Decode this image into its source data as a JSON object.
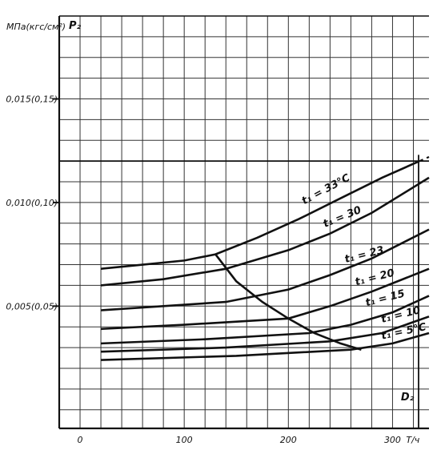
{
  "chart_data": {
    "type": "line",
    "title": "",
    "ylabel_unit": "МПа(кгс/см²)",
    "ylabel": "P₂",
    "xlabel": "D₂",
    "xunit": "Т/ч",
    "xlim": [
      -20,
      335
    ],
    "ylim": [
      -0.0009,
      0.019
    ],
    "grid": true,
    "x_ticks": [
      {
        "value": 0,
        "label": "0"
      },
      {
        "value": 100,
        "label": "100"
      },
      {
        "value": 200,
        "label": "200"
      },
      {
        "value": 300,
        "label": "300"
      }
    ],
    "y_ticks": [
      {
        "value": 0.005,
        "label": "0,005(0,05)"
      },
      {
        "value": 0.01,
        "label": "0,010(0,10)"
      },
      {
        "value": 0.015,
        "label": "0,015(0,15)"
      }
    ],
    "reference_lines": [
      {
        "axis": "y",
        "value": 0.012
      },
      {
        "axis": "x",
        "value": 325
      }
    ],
    "series": [
      {
        "name": "t₁ = 33°C",
        "x": [
          20,
          60,
          100,
          130,
          170,
          210,
          250,
          290,
          335
        ],
        "y": [
          0.0068,
          0.007,
          0.0072,
          0.0075,
          0.0083,
          0.0092,
          0.0102,
          0.0112,
          0.0122
        ],
        "dashed_after_x": 325
      },
      {
        "name": "t₁ = 30",
        "x": [
          20,
          80,
          140,
          200,
          240,
          280,
          335
        ],
        "y": [
          0.006,
          0.0063,
          0.0068,
          0.0077,
          0.0085,
          0.0095,
          0.0112
        ]
      },
      {
        "name": "t₁ = 23",
        "x": [
          20,
          80,
          140,
          200,
          240,
          280,
          335
        ],
        "y": [
          0.0048,
          0.005,
          0.0052,
          0.0058,
          0.0065,
          0.0073,
          0.0087
        ]
      },
      {
        "name": "t₁ = 20",
        "x": [
          20,
          100,
          200,
          240,
          280,
          335
        ],
        "y": [
          0.0039,
          0.0041,
          0.0044,
          0.005,
          0.0057,
          0.0068
        ]
      },
      {
        "name": "t₁ = 15",
        "x": [
          20,
          120,
          220,
          260,
          300,
          335
        ],
        "y": [
          0.0032,
          0.0034,
          0.0037,
          0.0041,
          0.0047,
          0.0055
        ]
      },
      {
        "name": "t₁ = 10",
        "x": [
          20,
          140,
          240,
          290,
          335
        ],
        "y": [
          0.0028,
          0.003,
          0.0033,
          0.0037,
          0.0045
        ]
      },
      {
        "name": "t₁ = 5°C",
        "x": [
          20,
          150,
          260,
          300,
          335
        ],
        "y": [
          0.0024,
          0.0026,
          0.0029,
          0.0032,
          0.0037
        ]
      },
      {
        "name": "",
        "x": [
          130,
          150,
          175,
          200,
          225,
          250,
          270
        ],
        "y": [
          0.0075,
          0.0062,
          0.0052,
          0.0044,
          0.0037,
          0.0032,
          0.0029
        ]
      }
    ]
  }
}
